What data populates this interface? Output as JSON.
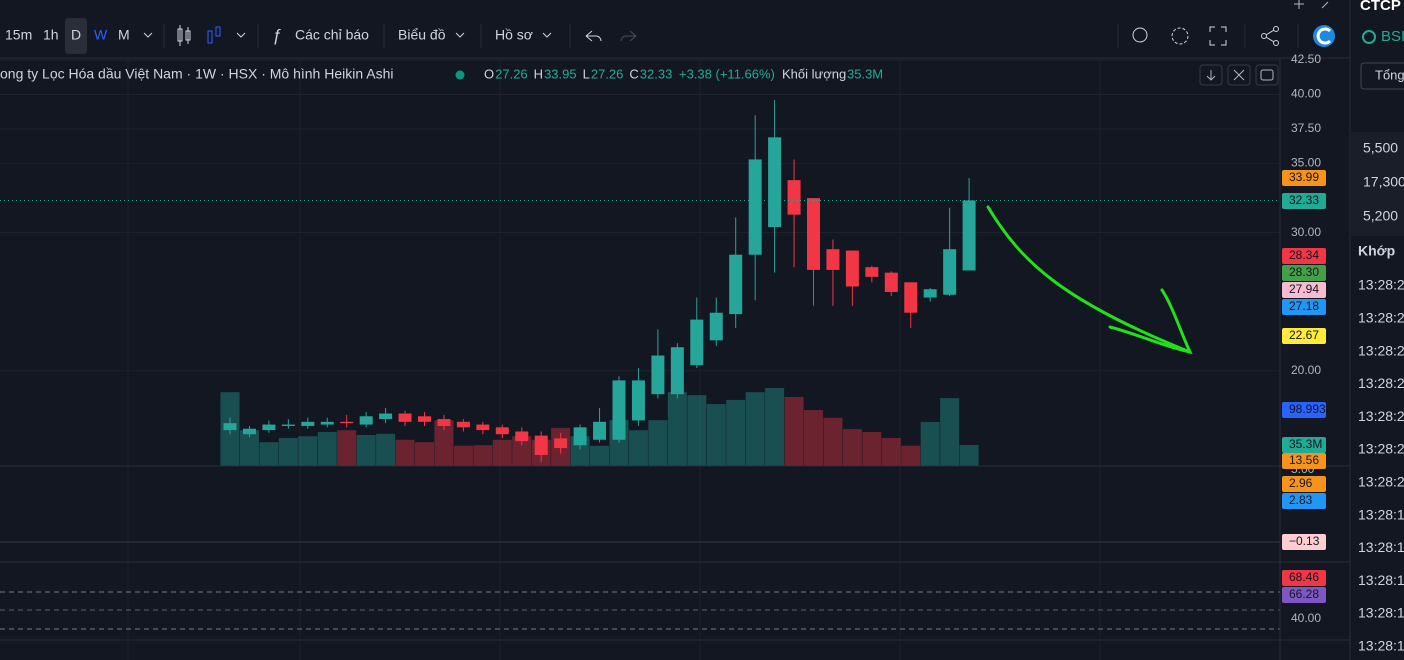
{
  "toolbar": {
    "intervals": [
      "15m",
      "1h",
      "D",
      "W",
      "M"
    ],
    "indicators": "Các chỉ báo",
    "chart_menu": "Biểu đồ",
    "profile": "Hồ sơ"
  },
  "legend": {
    "title": "ong ty Lọc Hóa dầu Việt Nam · 1W · HSX · Mô hình Heikin Ashi",
    "items": [
      {
        "key": "O",
        "value": "27.26"
      },
      {
        "key": "H",
        "value": "33.95"
      },
      {
        "key": "L",
        "value": "27.26"
      },
      {
        "key": "C",
        "value": "32.33"
      }
    ],
    "change": "+3.38 (+11.66%)",
    "volume_label": "Khối lượng",
    "volume_value": "35.3M"
  },
  "chart_data": {
    "type": "candlestick",
    "up_color": "#26a69a",
    "down_color": "#f23645",
    "open": [
      15.7,
      15.4,
      15.7,
      16.0,
      16.0,
      16.1,
      16.3,
      16.1,
      16.5,
      16.9,
      16.7,
      16.5,
      16.3,
      16.1,
      15.9,
      15.6,
      15.3,
      15.1,
      14.6,
      15.0,
      15.0,
      16.4,
      18.3,
      18.3,
      20.4,
      22.2,
      24.1,
      28.4,
      30.4,
      33.8,
      32.5,
      28.8,
      28.7,
      27.5,
      27.1,
      26.4,
      25.3,
      25.5,
      27.26
    ],
    "close": [
      16.2,
      15.8,
      16.1,
      16.1,
      16.3,
      16.3,
      16.2,
      16.7,
      16.9,
      16.3,
      16.3,
      16.0,
      15.9,
      15.7,
      15.4,
      14.9,
      13.9,
      14.4,
      15.9,
      16.3,
      19.3,
      19.3,
      21.1,
      21.7,
      23.7,
      24.2,
      28.4,
      35.3,
      36.9,
      31.3,
      27.3,
      27.3,
      26.1,
      26.8,
      25.7,
      24.2,
      25.9,
      28.8,
      32.33
    ],
    "high": [
      16.6,
      16.0,
      16.4,
      16.5,
      16.6,
      16.6,
      16.8,
      17.0,
      17.3,
      17.1,
      17.0,
      16.8,
      16.5,
      16.3,
      16.1,
      15.9,
      15.6,
      15.5,
      16.1,
      17.3,
      19.6,
      20.2,
      23.0,
      22.0,
      25.3,
      25.3,
      31.1,
      38.5,
      39.6,
      35.3,
      32.5,
      29.5,
      28.7,
      27.6,
      27.2,
      26.4,
      26.0,
      31.8,
      33.95
    ],
    "low": [
      15.4,
      15.2,
      15.5,
      15.8,
      15.8,
      15.9,
      15.9,
      15.9,
      16.2,
      16.0,
      16.0,
      15.7,
      15.6,
      15.4,
      15.1,
      14.6,
      13.4,
      14.0,
      14.3,
      14.8,
      14.8,
      16.0,
      18.0,
      18.0,
      20.2,
      21.8,
      23.1,
      25.1,
      27.1,
      27.5,
      24.7,
      24.7,
      24.7,
      26.4,
      25.4,
      23.1,
      25.0,
      25.4,
      27.26
    ],
    "volume": [
      124,
      60,
      40,
      47,
      50,
      57,
      60,
      52,
      54,
      44,
      40,
      77,
      34,
      35,
      44,
      50,
      44,
      64,
      50,
      34,
      77,
      60,
      77,
      124,
      119,
      104,
      111,
      124,
      131,
      116,
      94,
      81,
      62,
      57,
      47,
      34,
      74,
      114,
      35.3
    ],
    "ylim": [
      13.1,
      42.5
    ],
    "y2lim": [
      0,
      682
    ],
    "yticks": [
      {
        "value": 42.5,
        "label": "42.50"
      },
      {
        "value": 40,
        "label": "40.00"
      },
      {
        "value": 37.5,
        "label": "37.50"
      },
      {
        "value": 35,
        "label": "35.00"
      },
      {
        "value": 30,
        "label": "30.00"
      },
      {
        "value": 20,
        "label": "20.00"
      }
    ],
    "grid": true
  },
  "price_tags": [
    {
      "label": "33.99",
      "color": "#f7931a"
    },
    {
      "label": "32.33",
      "color": "#22ab94"
    },
    {
      "label": "28.34",
      "color": "#f23645"
    },
    {
      "label": "28.30",
      "color": "#43a047"
    },
    {
      "label": "27.94",
      "color": "#f8bbd0"
    },
    {
      "label": "27.18",
      "color": "#2196f3"
    },
    {
      "label": "22.67",
      "color": "#ffeb3b"
    },
    {
      "label": "98.993M",
      "color": "#2962ff"
    },
    {
      "label": "35.3M",
      "color": "#22ab94"
    },
    {
      "label": "13.56",
      "color": "#f7931a"
    }
  ],
  "macd": {
    "axis_label": "5.00",
    "tags": [
      {
        "label": "2.96",
        "color": "#f7931a"
      },
      {
        "label": "2.83",
        "color": "#2196f3"
      },
      {
        "label": "−0.13",
        "color": "#ffcdd2"
      }
    ]
  },
  "rsi": {
    "axis_label": "40.00",
    "tags": [
      {
        "label": "68.46",
        "color": "#f23645"
      },
      {
        "label": "66.28",
        "color": "#7e57c2"
      }
    ]
  },
  "side_panel": {
    "title": "CTCP",
    "ticker": "BSI",
    "tab": "Tổng",
    "prices": [
      "5,500",
      "17,300",
      "5,200"
    ],
    "header": "Khớp",
    "times": [
      "13:28:2",
      "13:28:2",
      "13:28:2",
      "13:28:2",
      "13:28:2",
      "13:28:2",
      "13:28:2",
      "13:28:1",
      "13:28:1",
      "13:28:1",
      "13:28:1",
      "13:28:1",
      "13:28:1"
    ]
  }
}
